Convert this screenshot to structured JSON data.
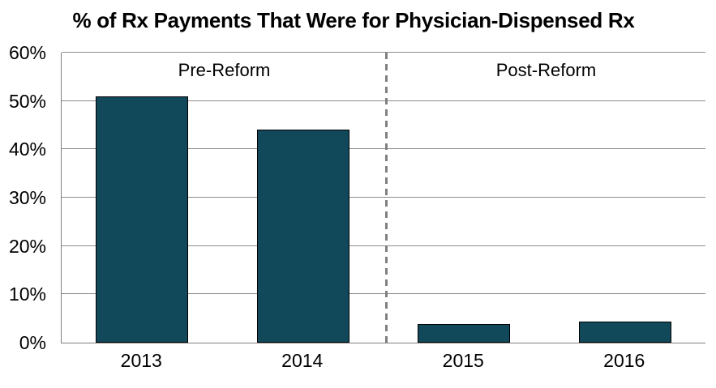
{
  "chart_data": {
    "type": "bar",
    "title": "% of Rx Payments That Were for Physician-Dispensed Rx",
    "categories": [
      "2013",
      "2014",
      "2015",
      "2016"
    ],
    "values": [
      51,
      44,
      3.8,
      4.4
    ],
    "xlabel": "",
    "ylabel": "",
    "ylim": [
      0,
      60
    ],
    "ytick_labels": [
      "0%",
      "10%",
      "20%",
      "30%",
      "40%",
      "50%",
      "60%"
    ],
    "grid": true,
    "legend": "none",
    "annotations": [
      {
        "text": "Pre-Reform",
        "region": "left-of-separator"
      },
      {
        "text": "Post-Reform",
        "region": "right-of-separator"
      }
    ],
    "separator": {
      "style": "dashed-vertical-line",
      "between_categories": [
        "2014",
        "2015"
      ]
    }
  },
  "colors": {
    "background": "#FFFFFF",
    "bar_fill": "#11495A",
    "bar_border": "#000000",
    "gridline": "#8C8C8C",
    "axis_line": "#7F7F7F",
    "separator": "#808080",
    "text": "#000000"
  }
}
